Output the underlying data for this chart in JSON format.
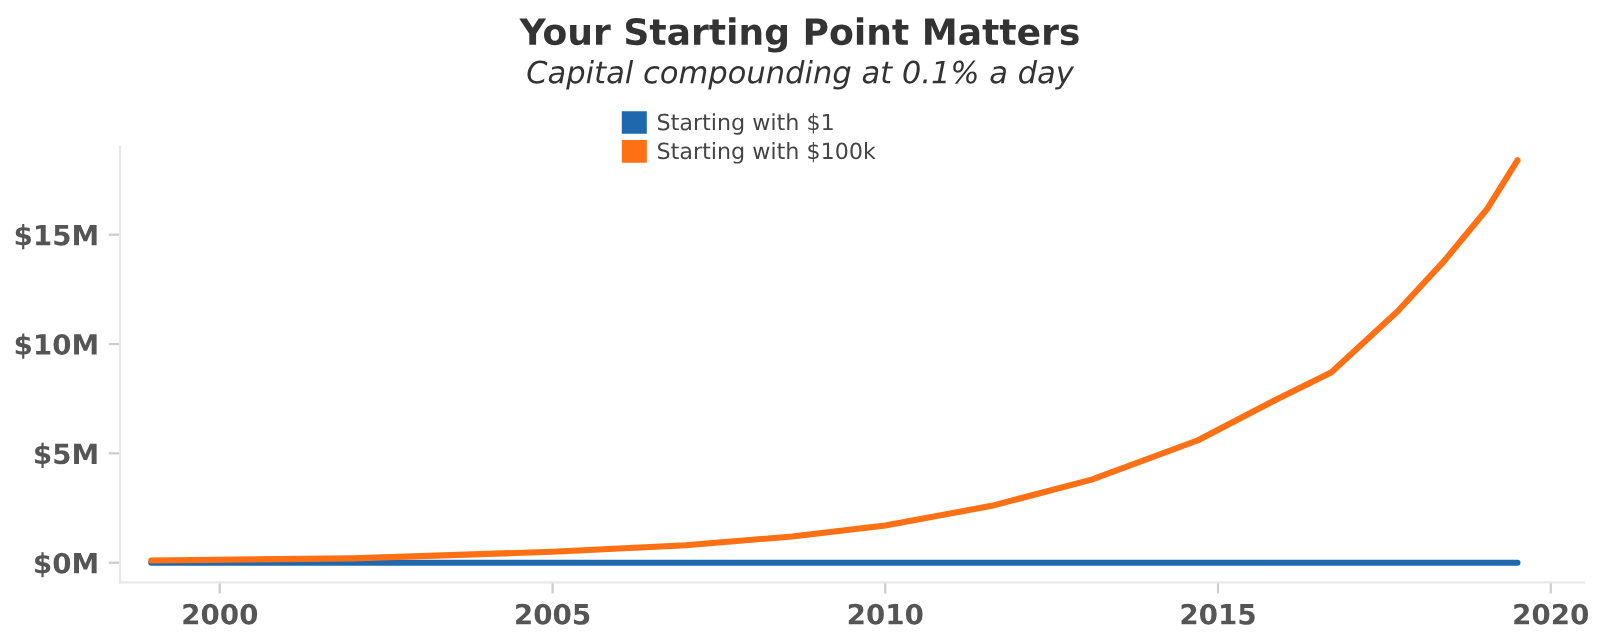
{
  "chart_data": {
    "type": "line",
    "title": "Your Starting Point Matters",
    "subtitle": "Capital compounding at 0.1% a day",
    "series": [
      {
        "name": "Starting with $1",
        "color": "#1f68ad",
        "x": [
          1998.97,
          2004,
          2009,
          2014,
          2019.5
        ],
        "values": [
          0,
          0,
          0,
          0,
          0
        ]
      },
      {
        "name": "Starting with $100k",
        "color": "#ff6f14",
        "x": [
          1998.97,
          2002,
          2005,
          2007,
          2008.6,
          2010,
          2011.6,
          2013.1,
          2014.7,
          2015.9,
          2016.7,
          2017.7,
          2018.4,
          2019.05,
          2019.5
        ],
        "values": [
          0.1,
          0.2,
          0.5,
          0.8,
          1.2,
          1.7,
          2.6,
          3.8,
          5.6,
          7.5,
          8.7,
          11.5,
          13.8,
          16.2,
          18.4
        ]
      }
    ],
    "xlim": [
      1998.5,
      2020.5
    ],
    "xticks": [
      2000,
      2005,
      2010,
      2015,
      2020
    ],
    "ylim": [
      -0.9,
      19
    ],
    "yticks": [
      {
        "value": 0,
        "label": "$0M"
      },
      {
        "value": 5,
        "label": "$5M"
      },
      {
        "value": 10,
        "label": "$10M"
      },
      {
        "value": 15,
        "label": "$15M"
      }
    ],
    "grid": false,
    "legend": "top",
    "marker": "none",
    "line_style": "solid"
  }
}
